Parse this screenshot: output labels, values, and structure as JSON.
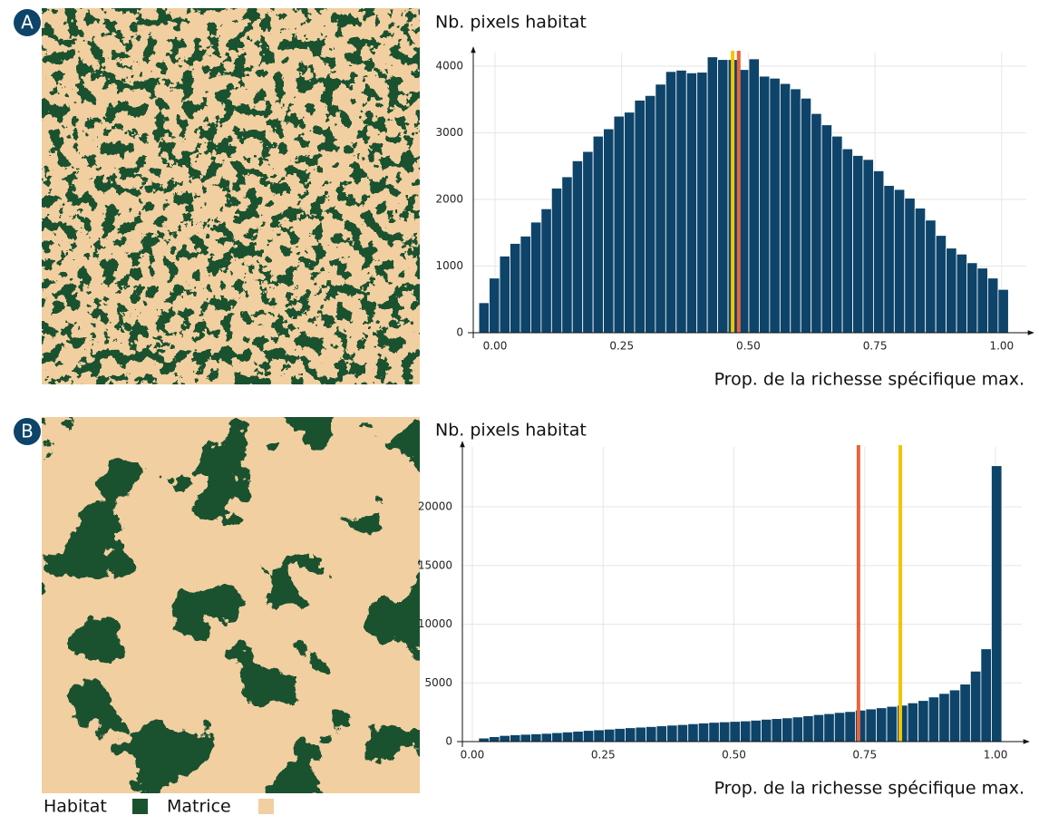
{
  "chart_data": [
    {
      "type": "histogram",
      "panel": "A",
      "y_label": "Nb. pixels habitat",
      "x_label": "Prop. de la richesse spécifique max.",
      "color": "#0e4469",
      "grid": true,
      "bins": [
        -0.032,
        -0.0115,
        0.009,
        0.0295,
        0.05,
        0.0705,
        0.091,
        0.1115,
        0.132,
        0.1525,
        0.173,
        0.1935,
        0.214,
        0.2345,
        0.255,
        0.2755,
        0.296,
        0.3165,
        0.337,
        0.3575,
        0.378,
        0.3985,
        0.419,
        0.4395,
        0.46,
        0.4805,
        0.501,
        0.5215,
        0.542,
        0.5625,
        0.583,
        0.6035,
        0.624,
        0.6445,
        0.665,
        0.6855,
        0.706,
        0.7265,
        0.747,
        0.7675,
        0.788,
        0.8085,
        0.829,
        0.8495,
        0.87,
        0.8905,
        0.911,
        0.9315,
        0.952,
        0.9725,
        0.993,
        1.0135
      ],
      "values": [
        450,
        820,
        1150,
        1340,
        1450,
        1660,
        1860,
        2170,
        2340,
        2580,
        2720,
        2950,
        3060,
        3250,
        3310,
        3490,
        3560,
        3730,
        3920,
        3940,
        3900,
        3910,
        4140,
        4100,
        4100,
        3950,
        4110,
        3850,
        3820,
        3740,
        3660,
        3520,
        3290,
        3120,
        2950,
        2760,
        2660,
        2600,
        2430,
        2210,
        2150,
        2020,
        1870,
        1690,
        1460,
        1270,
        1180,
        1050,
        970,
        820,
        650
      ],
      "vlines": [
        {
          "value": 0.469,
          "color": "#f5c400"
        },
        {
          "value": 0.481,
          "color": "#e8643c"
        }
      ],
      "xlim": [
        -0.043,
        1.063
      ],
      "ylim": [
        0,
        4286
      ],
      "xticks": [
        {
          "value": 0,
          "label": "0.00"
        },
        {
          "value": 0.25,
          "label": "0.25"
        },
        {
          "value": 0.5,
          "label": "0.50"
        },
        {
          "value": 0.75,
          "label": "0.75"
        },
        {
          "value": 1,
          "label": "1.00"
        }
      ],
      "yticks": [
        0,
        1000,
        2000,
        3000,
        4000
      ]
    },
    {
      "type": "histogram",
      "panel": "B",
      "y_label": "Nb. pixels habitat",
      "x_label": "Prop. de la richesse spécifique max.",
      "color": "#0e4469",
      "grid": true,
      "bins": [
        0.012,
        0.032,
        0.052,
        0.072,
        0.092,
        0.112,
        0.132,
        0.152,
        0.172,
        0.192,
        0.212,
        0.232,
        0.252,
        0.272,
        0.292,
        0.312,
        0.332,
        0.352,
        0.372,
        0.392,
        0.412,
        0.432,
        0.452,
        0.472,
        0.492,
        0.512,
        0.532,
        0.552,
        0.572,
        0.592,
        0.612,
        0.632,
        0.652,
        0.672,
        0.692,
        0.712,
        0.732,
        0.752,
        0.772,
        0.792,
        0.812,
        0.832,
        0.852,
        0.872,
        0.892,
        0.912,
        0.932,
        0.952,
        0.972,
        0.992,
        1.012
      ],
      "values": [
        300,
        420,
        520,
        580,
        620,
        660,
        700,
        760,
        820,
        880,
        950,
        1000,
        1060,
        1120,
        1180,
        1230,
        1280,
        1340,
        1400,
        1450,
        1520,
        1580,
        1640,
        1680,
        1720,
        1760,
        1820,
        1900,
        1960,
        2020,
        2100,
        2200,
        2300,
        2380,
        2480,
        2560,
        2680,
        2780,
        2880,
        3000,
        3100,
        3300,
        3500,
        3800,
        4100,
        4400,
        4900,
        6000,
        7900,
        23500
      ],
      "vlines": [
        {
          "value": 0.738,
          "color": "#e8643c"
        },
        {
          "value": 0.818,
          "color": "#f5c400"
        }
      ],
      "xlim": [
        -0.019,
        1.064
      ],
      "ylim": [
        0,
        25560
      ],
      "xticks": [
        {
          "value": 0,
          "label": "0.00"
        },
        {
          "value": 0.25,
          "label": "0.25"
        },
        {
          "value": 0.5,
          "label": "0.50"
        },
        {
          "value": 0.75,
          "label": "0.75"
        },
        {
          "value": 1,
          "label": "1.00"
        }
      ],
      "yticks": [
        0,
        5000,
        10000,
        15000,
        20000
      ]
    }
  ],
  "legend": {
    "items": [
      {
        "name": "Habitat",
        "color": "#1a5230"
      },
      {
        "name": "Matrice",
        "color": "#f2cfa0"
      }
    ]
  }
}
